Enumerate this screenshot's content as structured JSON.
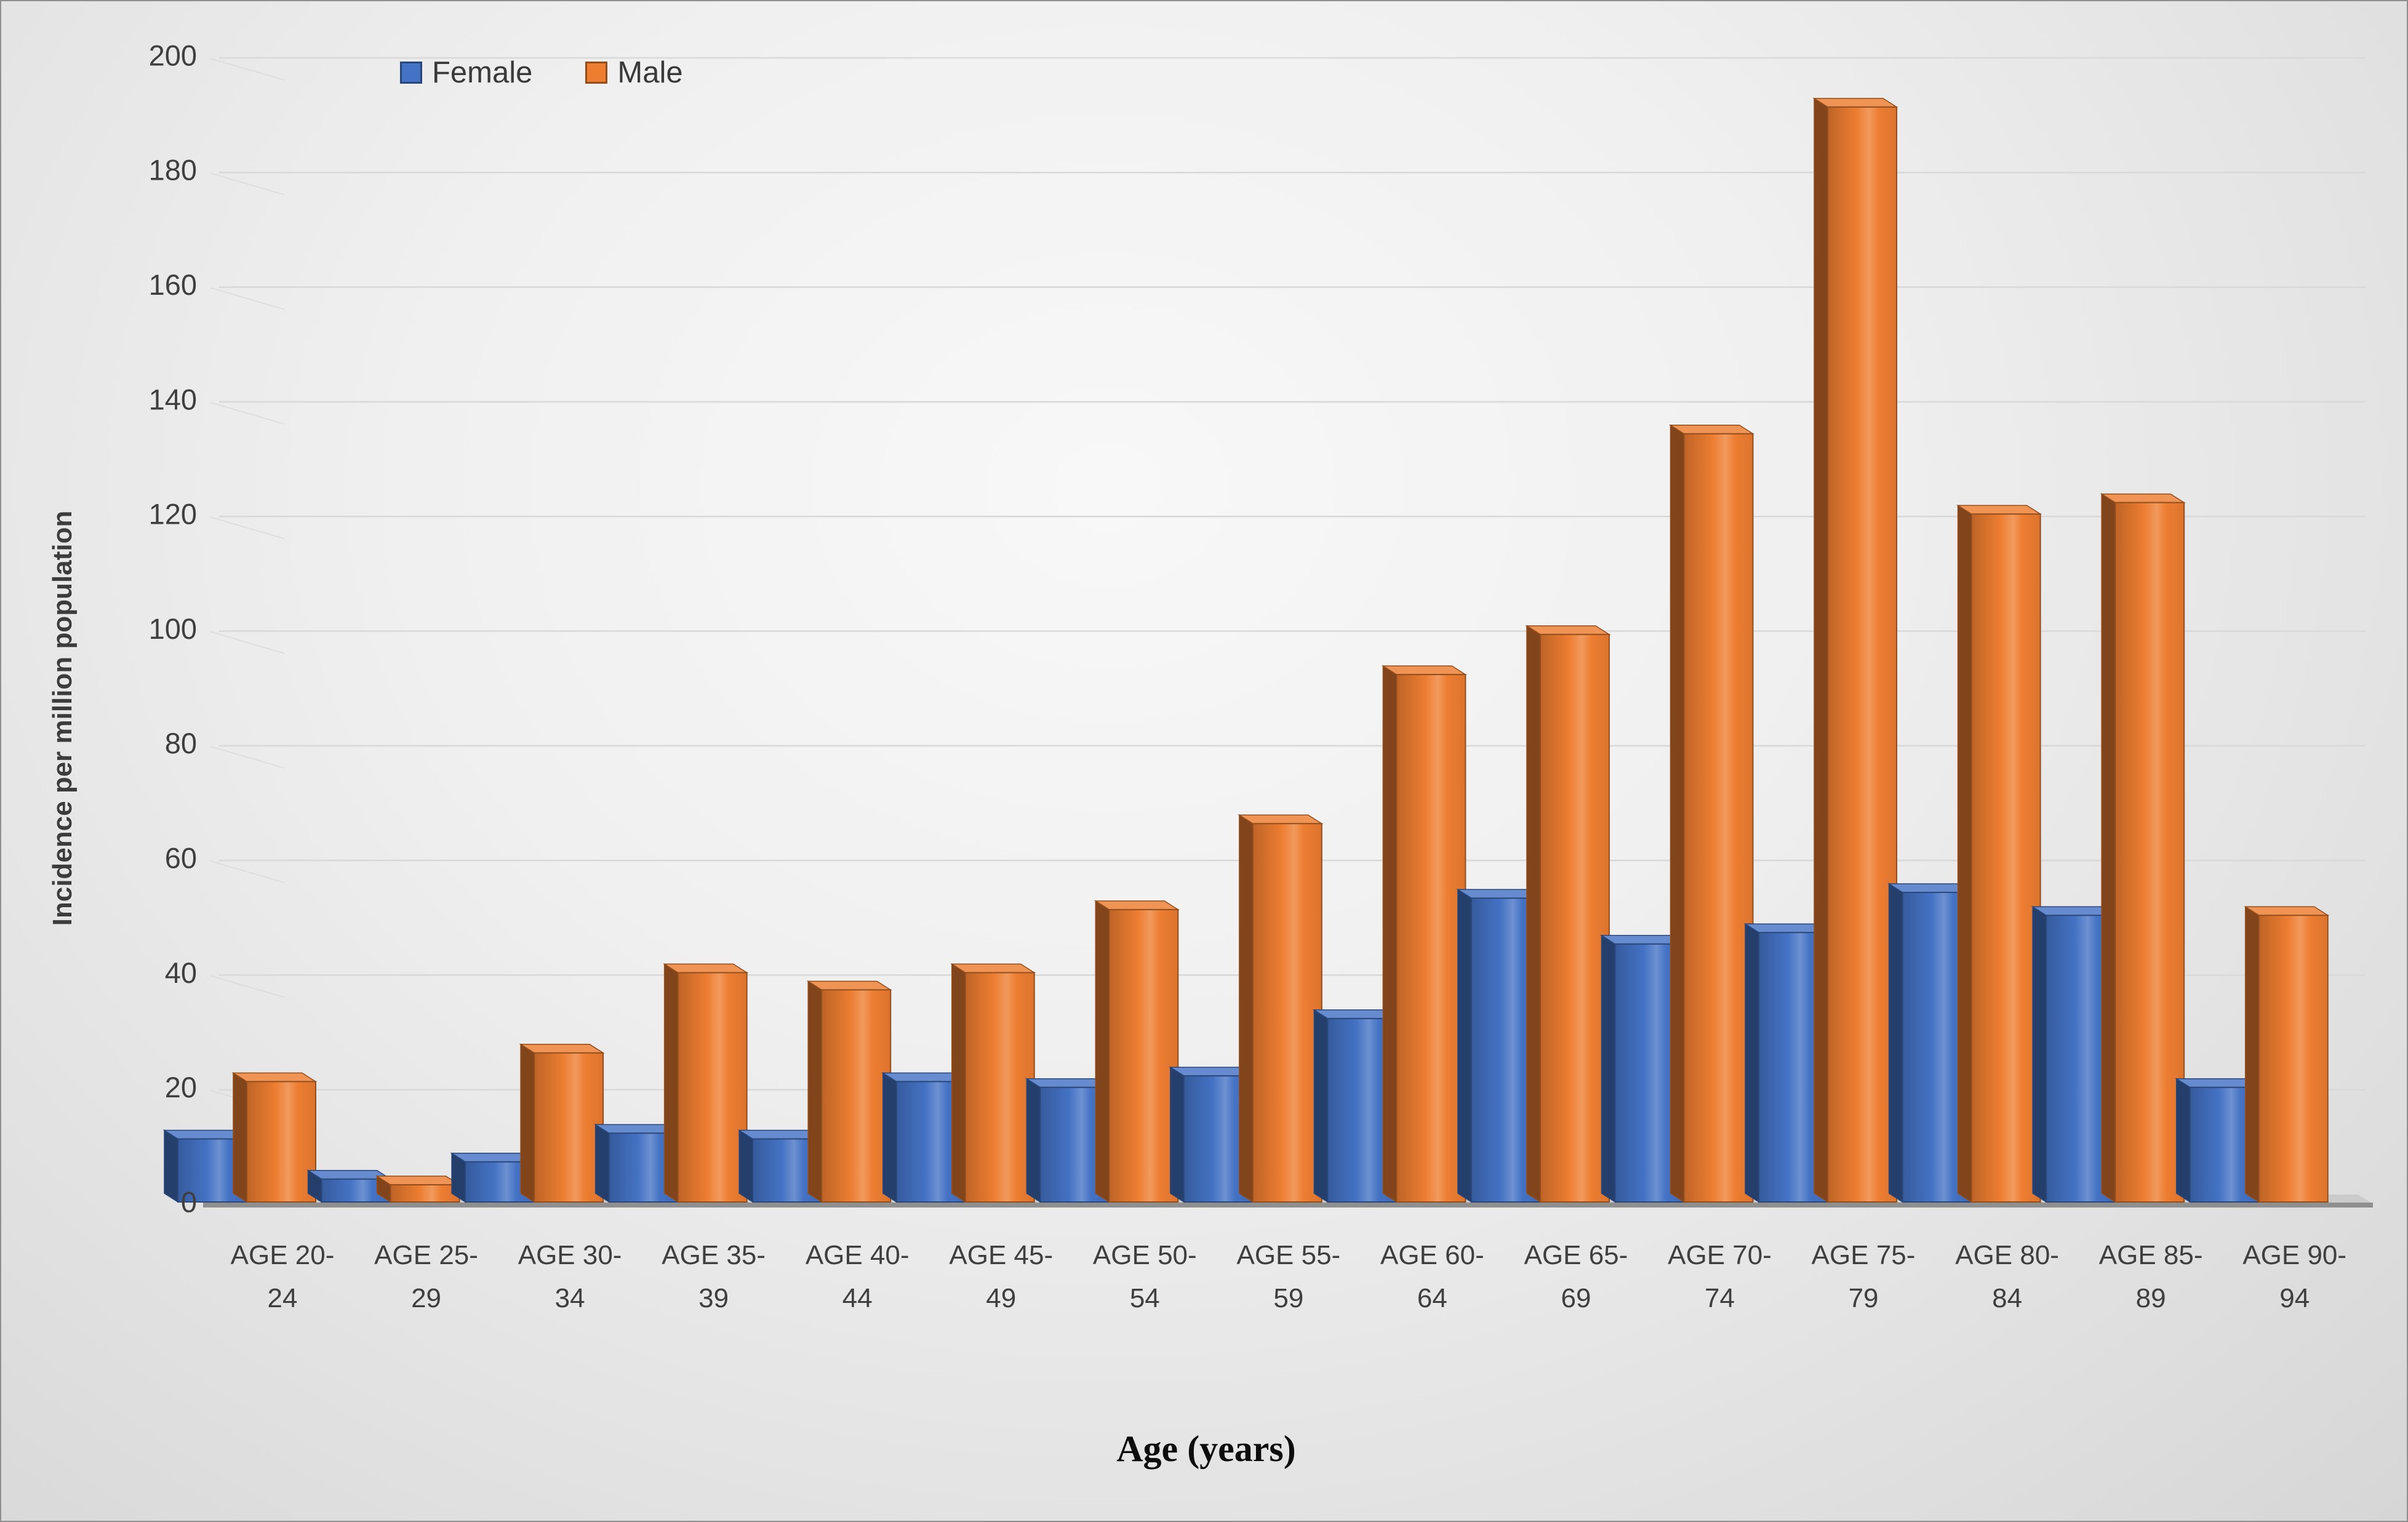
{
  "figure": {
    "y_axis_title": "Incidence per million population",
    "x_axis_title": "Age (years)",
    "legend": {
      "items": [
        {
          "label": "Female",
          "color": "#4472C4"
        },
        {
          "label": "Male",
          "color": "#ED7D31"
        }
      ]
    },
    "colors": {
      "background": "#e8e8e8",
      "gridline": "#d9d9d9",
      "floor": "#cbcbcb",
      "floor_edge": "#8f8f8f",
      "text": "#3f3f3f"
    }
  },
  "chart_data": {
    "type": "bar",
    "style": "3d-clustered-column",
    "title": "",
    "xlabel": "Age (years)",
    "ylabel": "Incidence per million population",
    "ylim": [
      0,
      200
    ],
    "ytick_interval": 20,
    "yticks": [
      0,
      20,
      40,
      60,
      80,
      100,
      120,
      140,
      160,
      180,
      200
    ],
    "grid": true,
    "legend_position": "top-inside",
    "categories": [
      "AGE 20-24",
      "AGE 25-29",
      "AGE 30-34",
      "AGE 35-39",
      "AGE 40-44",
      "AGE 45-49",
      "AGE 50-54",
      "AGE 55-59",
      "AGE 60-64",
      "AGE 65-69",
      "AGE 70-74",
      "AGE 75-79",
      "AGE 80-84",
      "AGE 85-89",
      "AGE 90-94"
    ],
    "category_label_lines": [
      [
        "AGE 20-",
        "24"
      ],
      [
        "AGE 25-",
        "29"
      ],
      [
        "AGE 30-",
        "34"
      ],
      [
        "AGE 35-",
        "39"
      ],
      [
        "AGE 40-",
        "44"
      ],
      [
        "AGE 45-",
        "49"
      ],
      [
        "AGE 50-",
        "54"
      ],
      [
        "AGE 55-",
        "59"
      ],
      [
        "AGE 60-",
        "64"
      ],
      [
        "AGE 65-",
        "69"
      ],
      [
        "AGE 70-",
        "74"
      ],
      [
        "AGE 75-",
        "79"
      ],
      [
        "AGE 80-",
        "84"
      ],
      [
        "AGE 85-",
        "89"
      ],
      [
        "AGE 90-",
        "94"
      ]
    ],
    "series": [
      {
        "name": "Female",
        "color": "#4472C4",
        "values": [
          11,
          4,
          7,
          12,
          11,
          21,
          20,
          22,
          32,
          53,
          45,
          47,
          54,
          50,
          20
        ]
      },
      {
        "name": "Male",
        "color": "#ED7D31",
        "values": [
          21,
          3,
          26,
          40,
          37,
          40,
          51,
          66,
          92,
          99,
          134,
          191,
          120,
          122,
          50
        ]
      }
    ]
  }
}
